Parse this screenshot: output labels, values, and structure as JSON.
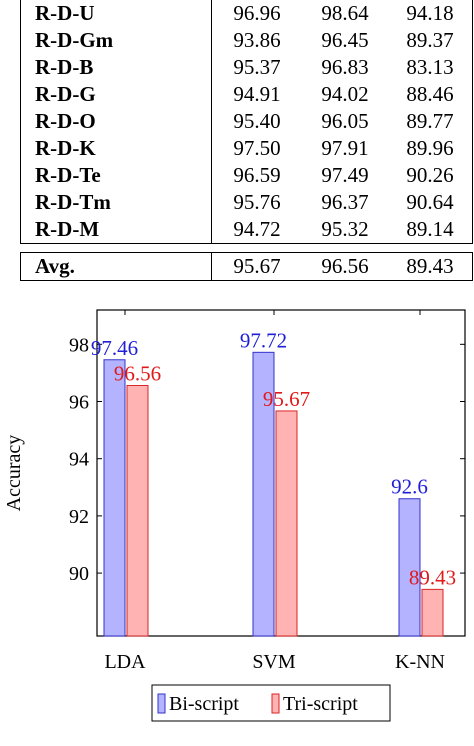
{
  "table": {
    "rows": [
      {
        "name": "R-D-U",
        "v1": "96.96",
        "v2": "98.64",
        "v3": "94.18"
      },
      {
        "name": "R-D-Gm",
        "v1": "93.86",
        "v2": "96.45",
        "v3": "89.37"
      },
      {
        "name": "R-D-B",
        "v1": "95.37",
        "v2": "96.83",
        "v3": "83.13"
      },
      {
        "name": "R-D-G",
        "v1": "94.91",
        "v2": "94.02",
        "v3": "88.46"
      },
      {
        "name": "R-D-O",
        "v1": "95.40",
        "v2": "96.05",
        "v3": "89.77"
      },
      {
        "name": "R-D-K",
        "v1": "97.50",
        "v2": "97.91",
        "v3": "89.96"
      },
      {
        "name": "R-D-Te",
        "v1": "96.59",
        "v2": "97.49",
        "v3": "90.26"
      },
      {
        "name": "R-D-Tm",
        "v1": "95.76",
        "v2": "96.37",
        "v3": "90.64"
      },
      {
        "name": "R-D-M",
        "v1": "94.72",
        "v2": "95.32",
        "v3": "89.14"
      }
    ],
    "avg": {
      "name": "Avg.",
      "v1": "95.67",
      "v2": "96.56",
      "v3": "89.43"
    }
  },
  "chart_data": {
    "type": "bar",
    "categories": [
      "LDA",
      "SVM",
      "K-NN"
    ],
    "series": [
      {
        "name": "Bi-script",
        "values": [
          97.46,
          97.72,
          92.6
        ],
        "labels": [
          "97.46",
          "97.72",
          "92.6"
        ],
        "fill": "#b3b3ff",
        "stroke": "#3333cc",
        "label_color": "#1f1fd6"
      },
      {
        "name": "Tri-script",
        "values": [
          96.56,
          95.67,
          89.43
        ],
        "labels": [
          "96.56",
          "95.67",
          "89.43"
        ],
        "fill": "#ffb3b3",
        "stroke": "#d92626",
        "label_color": "#e01a1a"
      }
    ],
    "ylabel": "Accuracy",
    "xlabel": "",
    "ylim": [
      87.8,
      99.2
    ],
    "yticks": [
      90,
      92,
      94,
      96,
      98
    ],
    "grid": false,
    "legend": "bottom-center"
  }
}
